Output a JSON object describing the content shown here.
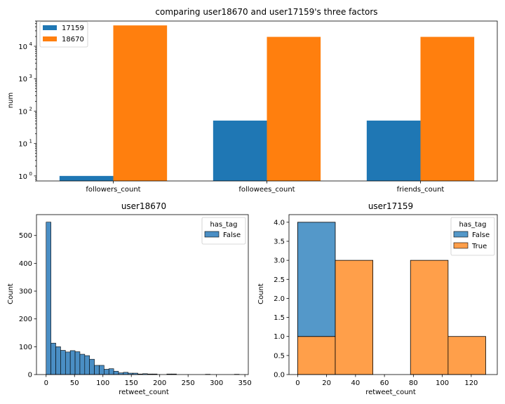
{
  "chart_data": [
    {
      "type": "bar",
      "title": "comparing user18670 and user17159's three factors",
      "xlabel": "",
      "ylabel": "num",
      "yscale": "log",
      "ylim": [
        0.7,
        60000
      ],
      "yticks": [
        1,
        10,
        100,
        1000,
        10000
      ],
      "ytick_labels": [
        {
          "base": "10",
          "exp": "0"
        },
        {
          "base": "10",
          "exp": "1"
        },
        {
          "base": "10",
          "exp": "2"
        },
        {
          "base": "10",
          "exp": "3"
        },
        {
          "base": "10",
          "exp": "4"
        }
      ],
      "categories": [
        "followers_count",
        "followees_count",
        "friends_count"
      ],
      "series": [
        {
          "name": "17159",
          "values": [
            1,
            51,
            51
          ]
        },
        {
          "name": "18670",
          "values": [
            44000,
            19500,
            19500
          ]
        }
      ],
      "legend": "upper left",
      "colors": [
        "#1f77b4",
        "#ff7f0e"
      ]
    },
    {
      "type": "histogram",
      "title": "user18670",
      "xlabel": "retweet_count",
      "ylabel": "Count",
      "xlim": [
        -17,
        356
      ],
      "ylim": [
        0,
        575
      ],
      "xticks": [
        0,
        50,
        100,
        150,
        200,
        250,
        300,
        350
      ],
      "yticks": [
        0,
        100,
        200,
        300,
        400,
        500
      ],
      "legend_title": "has_tag",
      "legend": "upper right",
      "series": [
        {
          "name": "False",
          "color": "#4a8ec4"
        }
      ],
      "bin_width": 8.5,
      "bins_start": 0,
      "counts": [
        548,
        113,
        100,
        87,
        81,
        86,
        82,
        73,
        68,
        55,
        33,
        33,
        19,
        21,
        12,
        6,
        8,
        5,
        5,
        2,
        3,
        2,
        2,
        0,
        0,
        2,
        2,
        0,
        0,
        0,
        0,
        0,
        0,
        1,
        0,
        0,
        0,
        0,
        0,
        1
      ]
    },
    {
      "type": "histogram",
      "title": "user17159",
      "xlabel": "retweet_count",
      "ylabel": "Count",
      "xlim": [
        -6,
        138
      ],
      "ylim": [
        0,
        4.2
      ],
      "xticks": [
        0,
        20,
        40,
        60,
        80,
        100,
        120
      ],
      "yticks": [
        0.0,
        0.5,
        1.0,
        1.5,
        2.0,
        2.5,
        3.0,
        3.5,
        4.0
      ],
      "legend_title": "has_tag",
      "legend": "upper right",
      "bin_edges": [
        0,
        26,
        52,
        78,
        104,
        130
      ],
      "series": [
        {
          "name": "False",
          "color": "#5498c9",
          "counts": [
            3,
            0,
            0,
            0,
            0
          ]
        },
        {
          "name": "True",
          "color": "#ff9f4a",
          "counts": [
            1,
            3,
            0,
            3,
            1
          ]
        }
      ]
    }
  ]
}
